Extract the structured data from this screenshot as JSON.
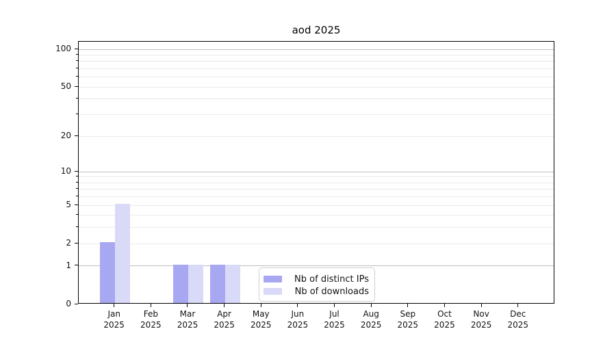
{
  "title": "aod 2025",
  "colors": {
    "bar_distinct_ips": "#a8a8f2",
    "bar_downloads": "#d9d9f8",
    "grid_major": "#bdbdbd",
    "grid_minor": "#eaeaea",
    "axis": "#000000",
    "legend_border": "#d0d0d0"
  },
  "legend": {
    "items": [
      {
        "label": "Nb of distinct IPs",
        "series_index": 0
      },
      {
        "label": "Nb of downloads",
        "series_index": 1
      }
    ]
  },
  "chart_data": {
    "type": "bar",
    "title": "aod 2025",
    "categories": [
      "Jan 2025",
      "Feb 2025",
      "Mar 2025",
      "Apr 2025",
      "May 2025",
      "Jun 2025",
      "Jul 2025",
      "Aug 2025",
      "Sep 2025",
      "Oct 2025",
      "Nov 2025",
      "Dec 2025"
    ],
    "series": [
      {
        "name": "Nb of distinct IPs",
        "color": "#a8a8f2",
        "values": [
          2,
          0,
          1,
          1,
          0,
          0,
          0,
          0,
          0,
          0,
          0,
          0
        ]
      },
      {
        "name": "Nb of downloads",
        "color": "#d9d9f8",
        "values": [
          5,
          0,
          1,
          1,
          0,
          0,
          0,
          0,
          0,
          0,
          0,
          0
        ]
      }
    ],
    "y_axis": {
      "scale": "log1p",
      "ylim": [
        0,
        115
      ],
      "tick_values": [
        0,
        1,
        2,
        5,
        10,
        20,
        50,
        100
      ],
      "tick_labels": [
        "0",
        "1",
        "2",
        "5",
        "10",
        "20",
        "50",
        "100"
      ],
      "major_grid_values": [
        1,
        10,
        100
      ],
      "minor_grid_values": [
        2,
        3,
        4,
        5,
        6,
        7,
        8,
        9,
        20,
        30,
        40,
        50,
        60,
        70,
        80,
        90
      ],
      "minor_tick_values": [
        3,
        4,
        6,
        7,
        8,
        9,
        30,
        40,
        60,
        70,
        80,
        90
      ]
    },
    "xlabel": "",
    "ylabel": "",
    "grid": "on",
    "legend_position": "inside lower center"
  }
}
